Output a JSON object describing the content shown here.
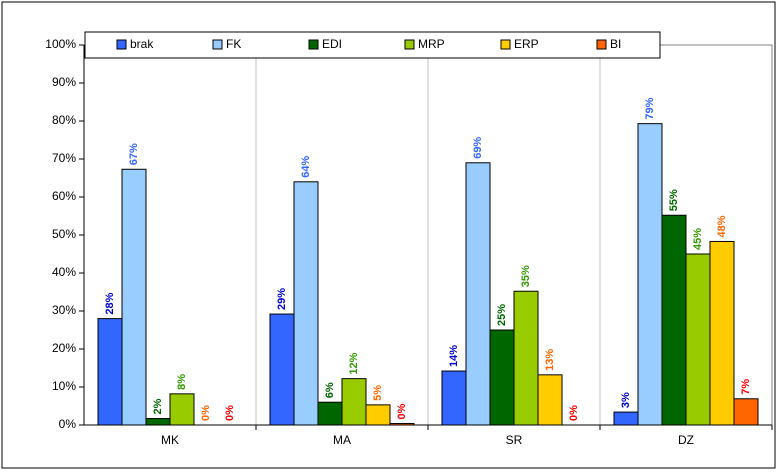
{
  "chart_data": {
    "type": "bar",
    "categories": [
      "MK",
      "MA",
      "SR",
      "DZ"
    ],
    "series": [
      {
        "name": "brak",
        "color": "#3366ff",
        "label_color": "#0000cc",
        "values": [
          28,
          29.2,
          14.2,
          3.4
        ],
        "value_labels": [
          "28%",
          "29%",
          "14%",
          "3%"
        ]
      },
      {
        "name": "FK",
        "color": "#99ccff",
        "label_color": "#3366ff",
        "values": [
          67.3,
          64,
          69,
          79.3
        ],
        "value_labels": [
          "67%",
          "64%",
          "69%",
          "79%"
        ]
      },
      {
        "name": "EDI",
        "color": "#006600",
        "label_color": "#006600",
        "values": [
          1.7,
          6,
          25,
          55.2
        ],
        "value_labels": [
          "2%",
          "6%",
          "25%",
          "55%"
        ]
      },
      {
        "name": "MRP",
        "color": "#99cc00",
        "label_color": "#339900",
        "values": [
          8.2,
          12.2,
          35.2,
          45
        ],
        "value_labels": [
          "8%",
          "12%",
          "35%",
          "45%"
        ]
      },
      {
        "name": "ERP",
        "color": "#ffcc00",
        "label_color": "#ff6600",
        "values": [
          0,
          5.3,
          13.2,
          48.3
        ],
        "value_labels": [
          "0%",
          "5%",
          "13%",
          "48%"
        ]
      },
      {
        "name": "BI",
        "color": "#ff6600",
        "label_color": "#ff0000",
        "values": [
          0,
          0.4,
          0,
          6.9
        ],
        "value_labels": [
          "0%",
          "0%",
          "0%",
          "7%"
        ]
      }
    ],
    "ylim": [
      0,
      100
    ],
    "yticks": [
      {
        "value": 0,
        "label": "0%"
      },
      {
        "value": 10,
        "label": "10%"
      },
      {
        "value": 20,
        "label": "20%"
      },
      {
        "value": 30,
        "label": "30%"
      },
      {
        "value": 40,
        "label": "40%"
      },
      {
        "value": 50,
        "label": "50%"
      },
      {
        "value": 60,
        "label": "60%"
      },
      {
        "value": 70,
        "label": "70%"
      },
      {
        "value": 80,
        "label": "80%"
      },
      {
        "value": 90,
        "label": "90%"
      },
      {
        "value": 100,
        "label": "100%"
      }
    ],
    "legend": "top"
  }
}
